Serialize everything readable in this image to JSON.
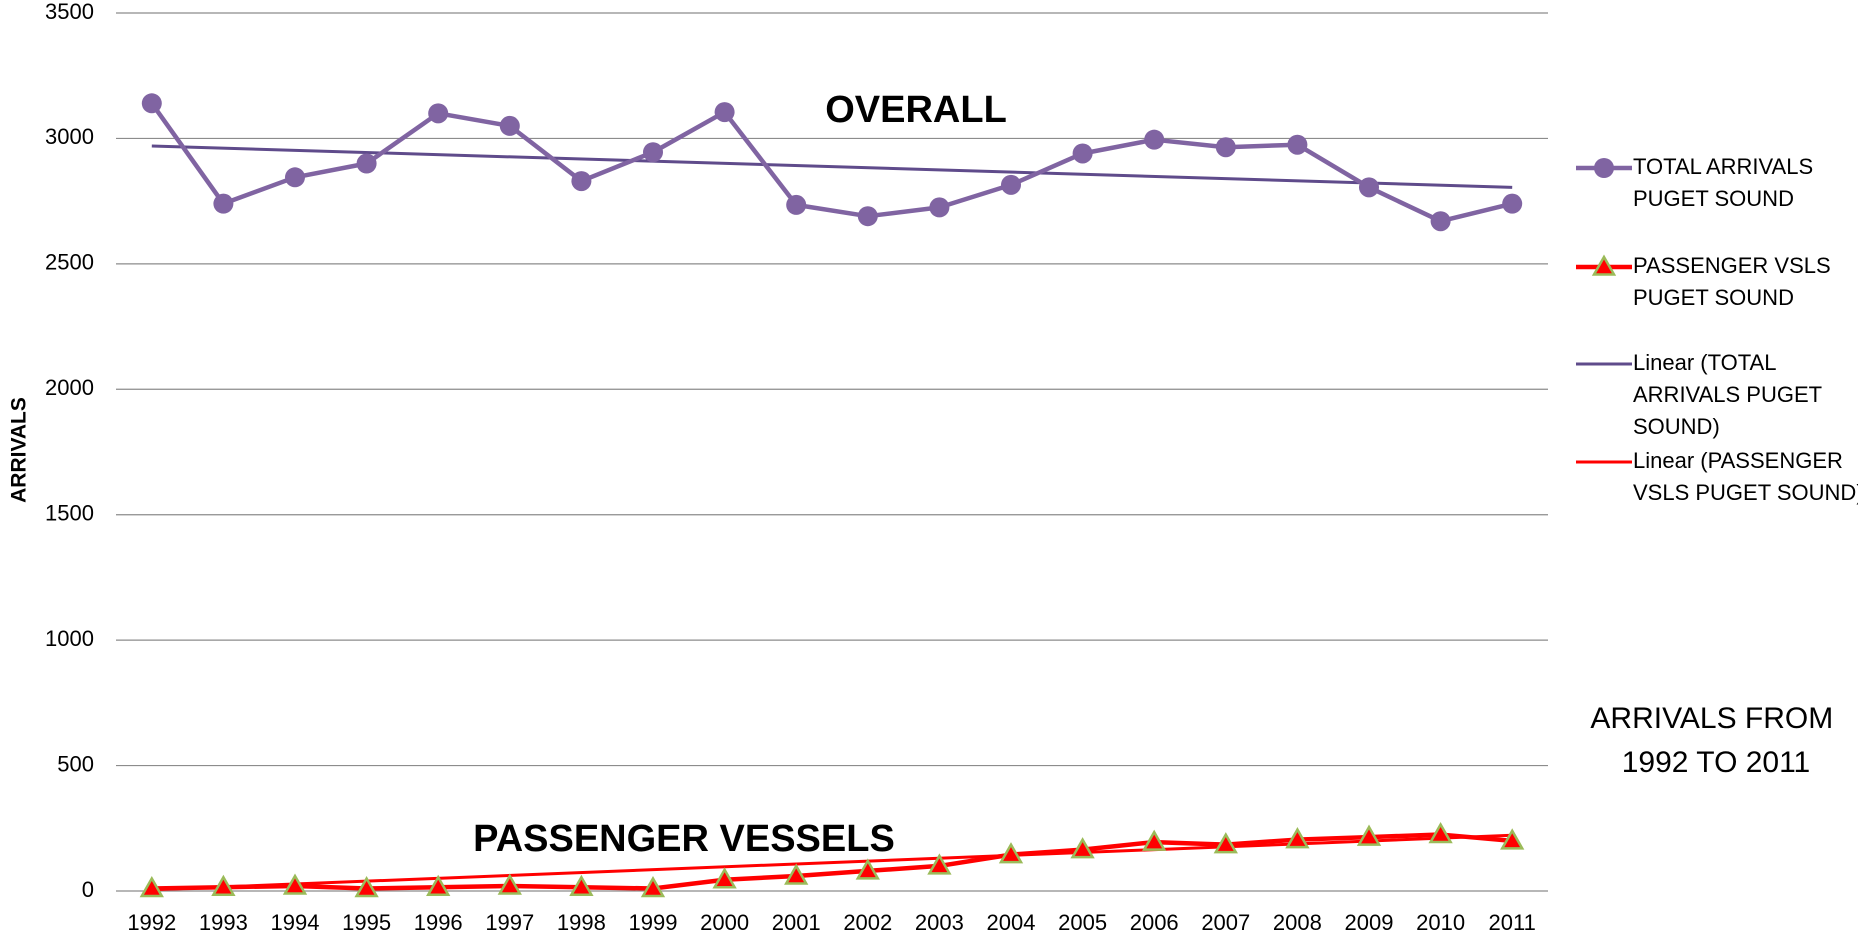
{
  "chart_data": {
    "type": "line",
    "categories": [
      "1992",
      "1993",
      "1994",
      "1995",
      "1996",
      "1997",
      "1998",
      "1999",
      "2000",
      "2001",
      "2002",
      "2003",
      "2004",
      "2005",
      "2006",
      "2007",
      "2008",
      "2009",
      "2010",
      "2011"
    ],
    "series": [
      {
        "name": "TOTAL ARRIVALS PUGET SOUND",
        "color": "#8064a2",
        "marker": "circle",
        "values": [
          3140,
          2740,
          2845,
          2900,
          3100,
          3050,
          2830,
          2945,
          3105,
          2735,
          2690,
          2725,
          2815,
          2940,
          2995,
          2965,
          2975,
          2805,
          2670,
          2740
        ]
      },
      {
        "name": "PASSENGER VSLS PUGET SOUND",
        "color": "#ff0000",
        "marker": "triangle",
        "values": [
          10,
          15,
          20,
          10,
          15,
          20,
          15,
          10,
          45,
          60,
          80,
          100,
          145,
          165,
          195,
          185,
          205,
          215,
          225,
          200
        ]
      }
    ],
    "trendlines": [
      {
        "name": "Linear (TOTAL ARRIVALS PUGET SOUND)",
        "color": "#5f4b8b",
        "values": [
          2970,
          2805
        ]
      },
      {
        "name": "Linear (PASSENGER VSLS PUGET SOUND)",
        "color": "#ff0000",
        "values": [
          5,
          222
        ]
      }
    ],
    "y_label": "ARRIVALS",
    "annotations": [
      "OVERALL",
      "PASSENGER VESSELS",
      "ARRIVALS FROM 1992 TO 2011"
    ],
    "ylim": [
      0,
      3500
    ],
    "yticks": [
      0,
      500,
      1000,
      1500,
      2000,
      2500,
      3000,
      3500
    ],
    "grid": true,
    "legend": "right"
  }
}
